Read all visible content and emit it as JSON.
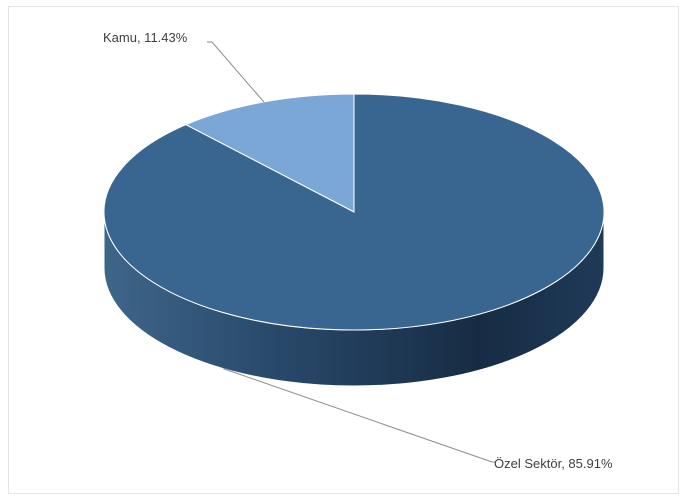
{
  "chart_data": {
    "type": "pie",
    "title": "",
    "three_d": true,
    "slices": [
      {
        "label": "Kamu",
        "value": 11.43,
        "label_text": "Kamu, 11.43%",
        "color": "#7BA7D7"
      },
      {
        "label": "Özel Sektör",
        "value": 85.91,
        "label_text": "Özel Sektör, 85.91%",
        "color": "#386690"
      }
    ],
    "legend": "none"
  }
}
